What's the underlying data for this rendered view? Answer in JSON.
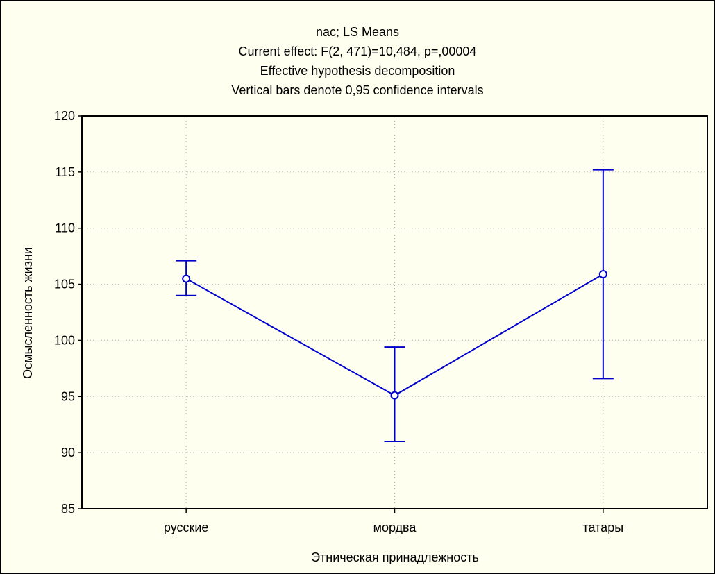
{
  "colors": {
    "background": "#fffff0",
    "series": "#0000cc",
    "grid": "#b4b4b4",
    "axis": "#000000"
  },
  "chart_data": {
    "type": "line",
    "title_lines": [
      "nac; LS Means",
      "Current effect: F(2, 471)=10,484, p=,00004",
      "Effective hypothesis decomposition",
      "Vertical bars denote 0,95 confidence intervals"
    ],
    "xlabel": "Этническая принадлежность",
    "ylabel": "Осмысленность жизни",
    "categories": [
      "русские",
      "мордва",
      "татары"
    ],
    "ylim": [
      85,
      120
    ],
    "yticks": [
      85,
      90,
      95,
      100,
      105,
      110,
      115,
      120
    ],
    "grid": true,
    "series": [
      {
        "values": [
          105.5,
          95.1,
          105.9
        ],
        "ci_lower": [
          104.0,
          91.0,
          96.6
        ],
        "ci_upper": [
          107.1,
          99.4,
          115.2
        ]
      }
    ]
  }
}
